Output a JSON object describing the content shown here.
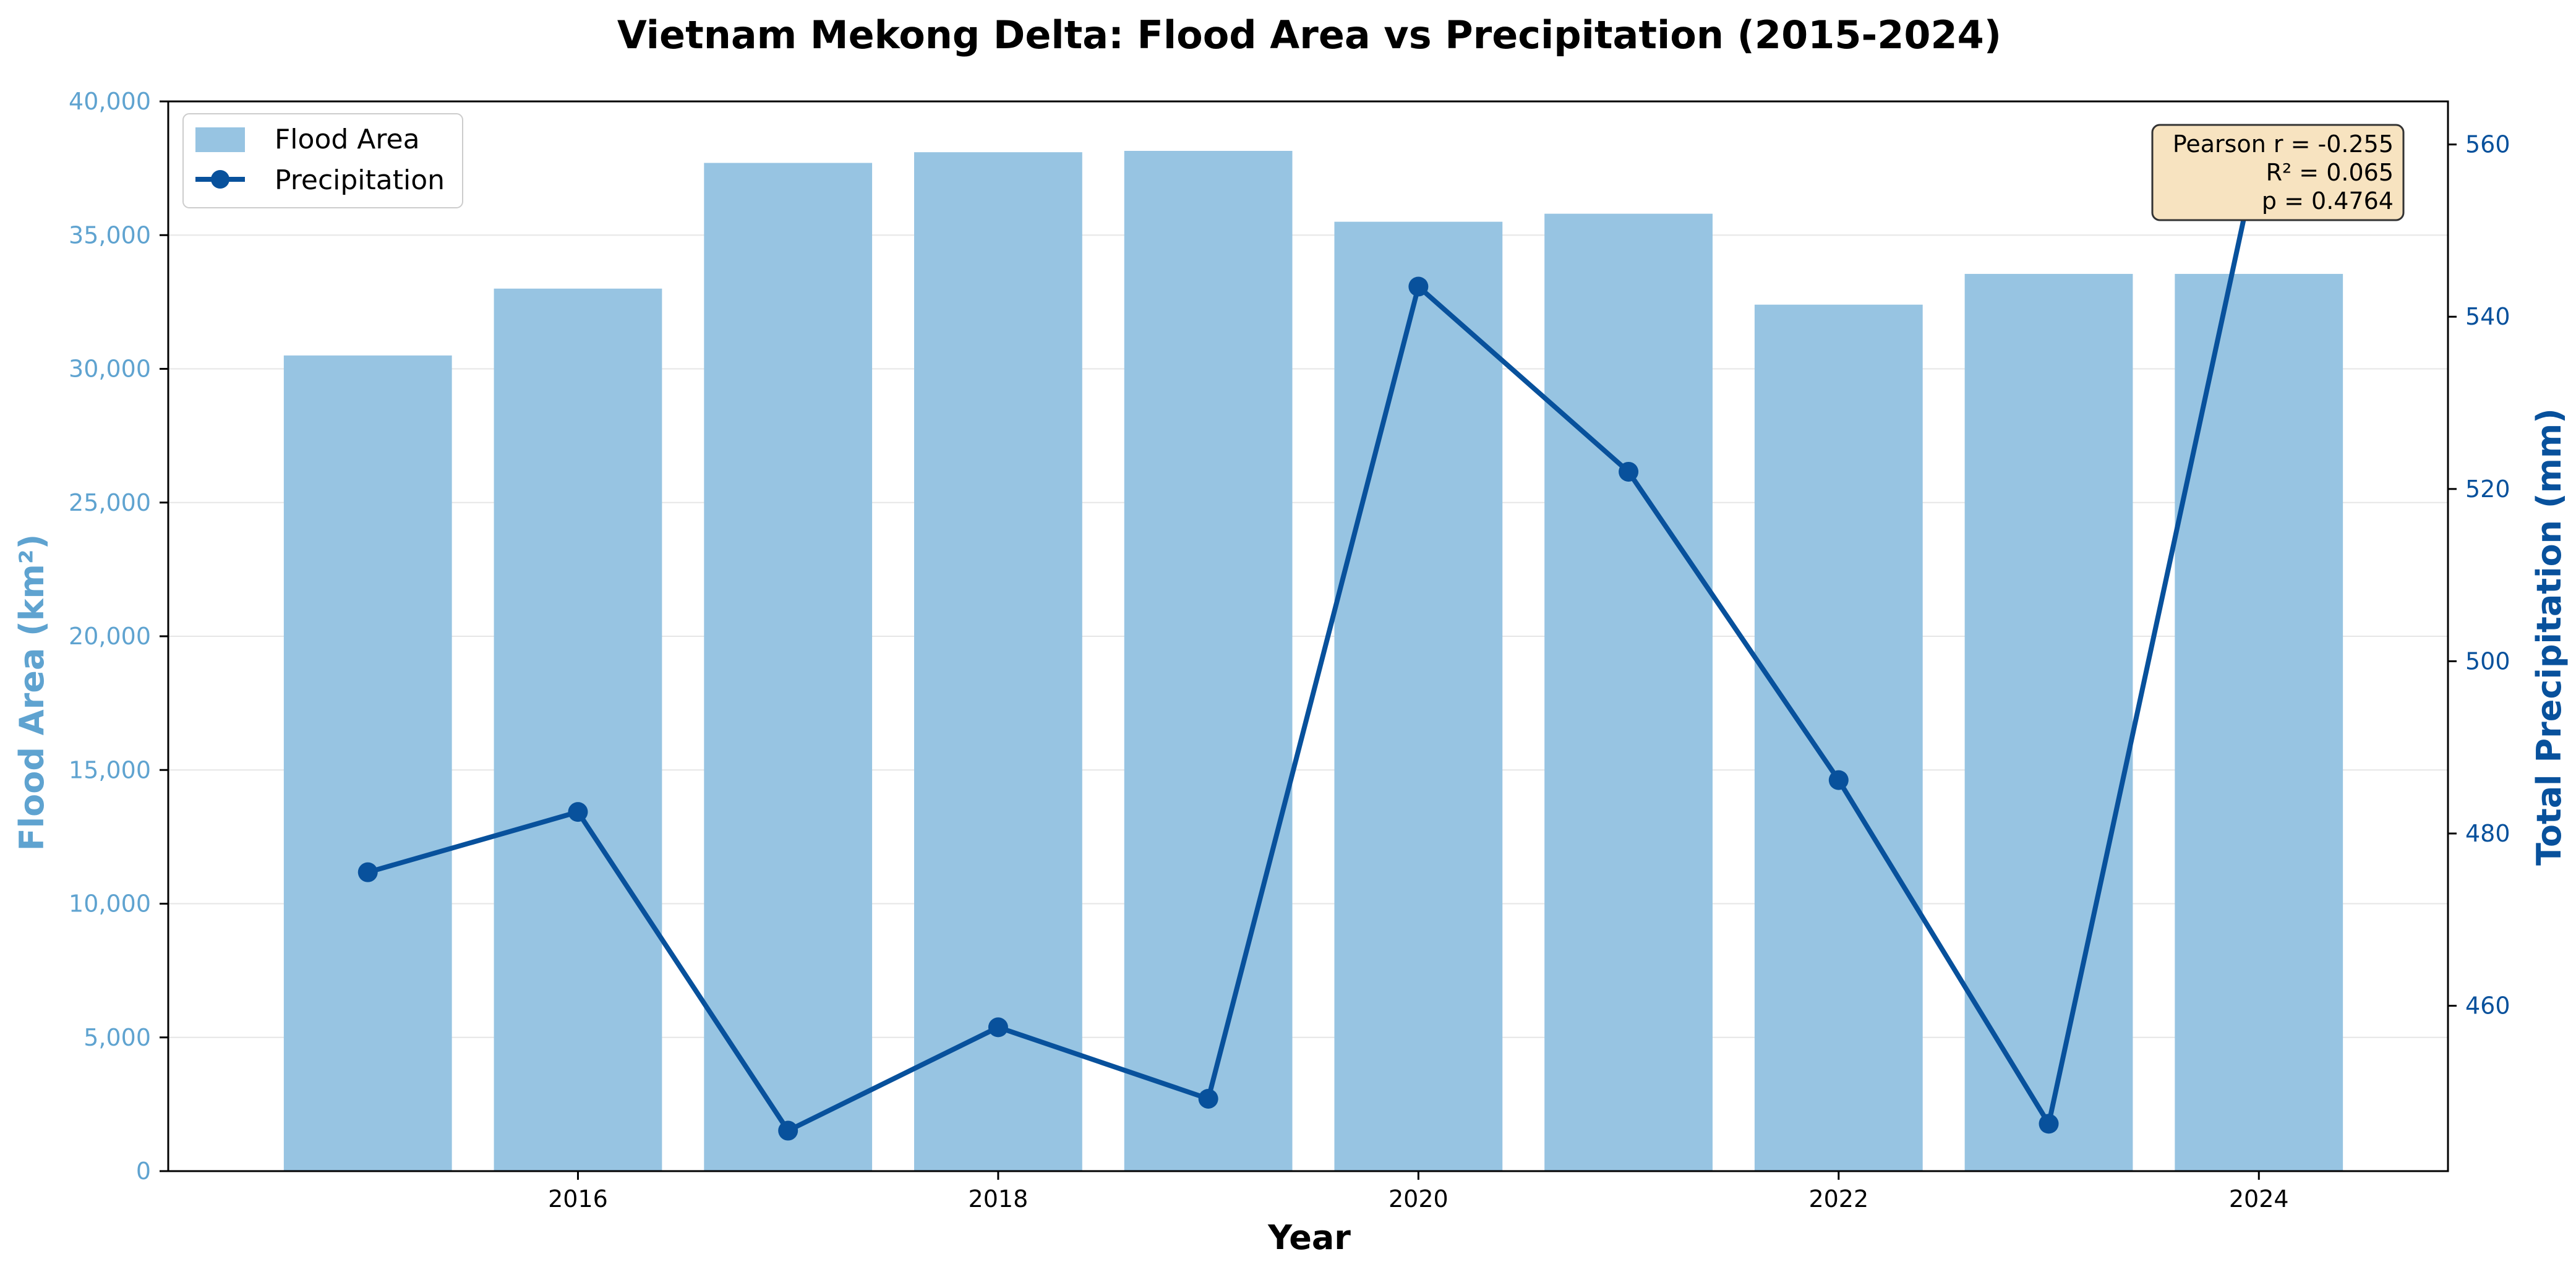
{
  "colors": {
    "bar": "#97c4e2",
    "line": "#08519c",
    "left_axis_text": "#5fa3d0",
    "right_axis_text": "#08519c",
    "grid": "#e6e6e6",
    "stats_box_fill": "#f7e3c0",
    "stats_box_stroke": "#333333"
  },
  "chart_data": {
    "type": "bar",
    "title": "Vietnam Mekong Delta: Flood Area vs Precipitation (2015-2024)",
    "xlabel": "Year",
    "ylabel": "Flood Area (km²)",
    "y2label": "Total Precipitation (mm)",
    "x": [
      2015,
      2016,
      2017,
      2018,
      2019,
      2020,
      2021,
      2022,
      2023,
      2024
    ],
    "xlim": [
      2014.05,
      2024.9
    ],
    "xticks": [
      2016,
      2018,
      2020,
      2022,
      2024
    ],
    "ylim": [
      0,
      40000
    ],
    "yticks": [
      0,
      5000,
      10000,
      15000,
      20000,
      25000,
      30000,
      35000,
      40000
    ],
    "ytick_labels": [
      "0",
      "5,000",
      "10,000",
      "15,000",
      "20,000",
      "25,000",
      "30,000",
      "35,000",
      "40,000"
    ],
    "y2lim": [
      440.8,
      565
    ],
    "y2ticks": [
      460,
      480,
      500,
      520,
      540,
      560
    ],
    "grid": "horizontal",
    "legend_position": "top-left",
    "series": [
      {
        "name": "Flood Area",
        "type": "bar",
        "axis": "left",
        "values": [
          30500,
          33000,
          37700,
          38100,
          38150,
          35500,
          35800,
          32400,
          33550,
          33550
        ]
      },
      {
        "name": "Precipitation",
        "type": "line",
        "axis": "right",
        "values": [
          475.5,
          482.5,
          445.5,
          457.5,
          449.2,
          543.5,
          522.0,
          486.2,
          446.3,
          559.5
        ]
      }
    ],
    "annotation": {
      "lines": [
        "Pearson r = -0.255",
        "R² = 0.065",
        "p = 0.4764"
      ],
      "position": "top-right"
    }
  }
}
